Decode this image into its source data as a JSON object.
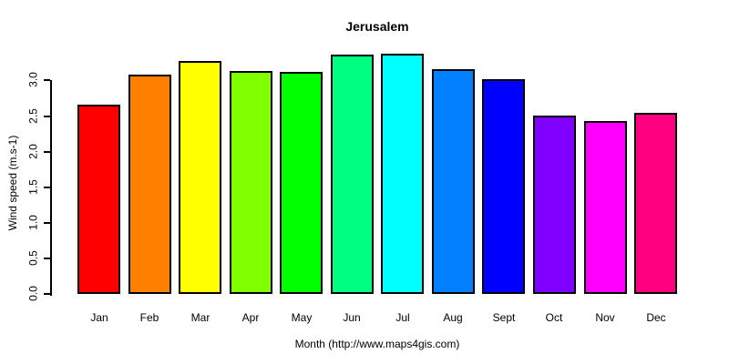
{
  "chart_data": {
    "type": "bar",
    "title": "Jerusalem",
    "ylabel": "Wind speed (m.s-1)",
    "xlabel": "Month (http://www.maps4gis.com)",
    "categories": [
      "Jan",
      "Feb",
      "Mar",
      "Apr",
      "May",
      "Jun",
      "Jul",
      "Aug",
      "Sept",
      "Oct",
      "Nov",
      "Dec"
    ],
    "values": [
      2.66,
      3.08,
      3.28,
      3.13,
      3.12,
      3.36,
      3.38,
      3.16,
      3.02,
      2.51,
      2.43,
      2.54
    ],
    "colors": [
      "#FF0000",
      "#FF8000",
      "#FFFF00",
      "#80FF00",
      "#00FF00",
      "#00FF80",
      "#00FFFF",
      "#0080FF",
      "#0000FF",
      "#8000FF",
      "#FF00FF",
      "#FF0080"
    ],
    "ytick_labels": [
      "0.0",
      "0.5",
      "1.0",
      "1.5",
      "2.0",
      "2.5",
      "3.0"
    ],
    "yticks": [
      0.0,
      0.5,
      1.0,
      1.5,
      2.0,
      2.5,
      3.0
    ],
    "ylim": [
      0,
      3.4
    ],
    "grid": false,
    "legend": "none",
    "bar_border_color": "#000000",
    "axis_color": "#000000",
    "text_color": "#000000",
    "background_color": "#FFFFFF"
  }
}
